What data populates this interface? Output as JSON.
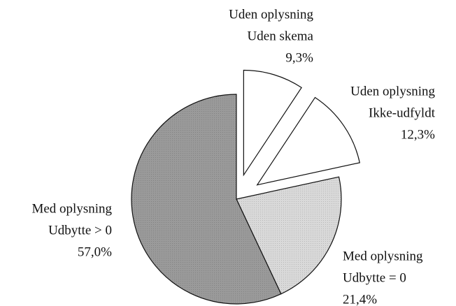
{
  "chart_data": {
    "type": "pie",
    "categories": [
      [
        "Uden oplysning",
        "Uden skema"
      ],
      [
        "Uden oplysning",
        "Ikke-udfyldt"
      ],
      [
        "Med oplysning",
        "Udbytte = 0"
      ],
      [
        "Med oplysning",
        "Udbytte > 0"
      ]
    ],
    "values": [
      9.3,
      12.3,
      21.4,
      57.0
    ],
    "value_labels": [
      "9,3%",
      "12,3%",
      "21,4%",
      "57,0%"
    ],
    "colors": [
      "#ffffff",
      "#ffffff",
      "#d9d9d9",
      "#9a9a9a"
    ],
    "explode": [
      true,
      true,
      false,
      false
    ]
  }
}
